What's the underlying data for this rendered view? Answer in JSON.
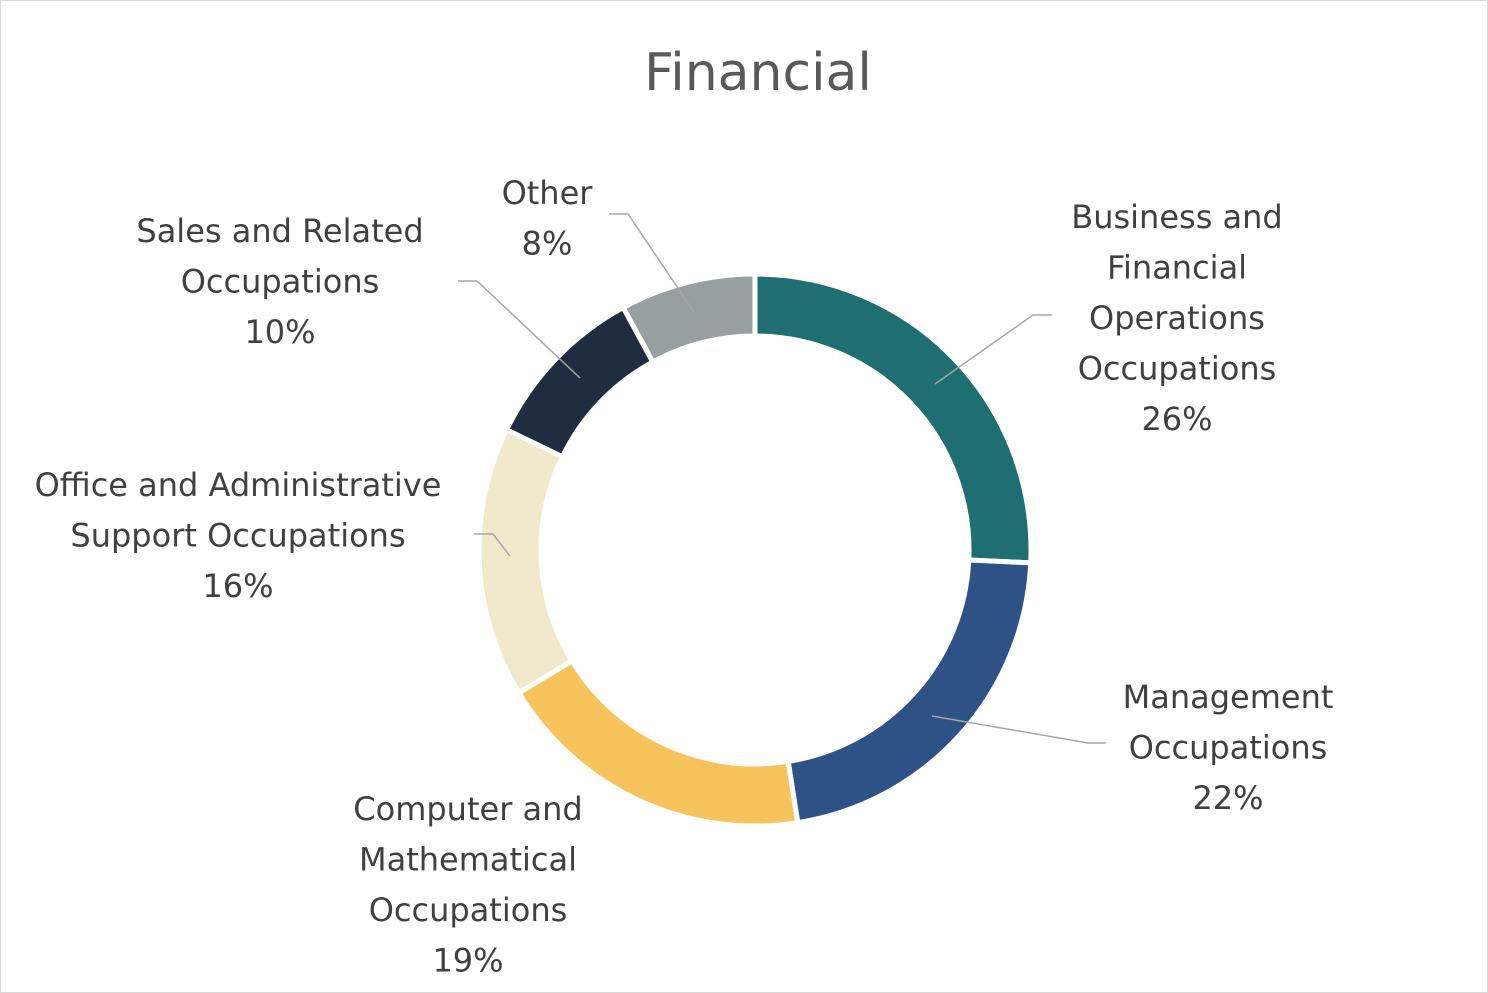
{
  "chart_data": {
    "type": "pie",
    "title": "Financial",
    "series": [
      {
        "name": "Business and Financial Operations Occupations",
        "value": 26,
        "label_lines": [
          "Business and",
          "Financial",
          "Operations",
          "Occupations",
          "26%"
        ],
        "color": "#1f6f72"
      },
      {
        "name": "Management Occupations",
        "value": 22,
        "label_lines": [
          "Management",
          "Occupations",
          "22%"
        ],
        "color": "#2e5285"
      },
      {
        "name": "Computer and Mathematical Occupations",
        "value": 19,
        "label_lines": [
          "Computer and",
          "Mathematical",
          "Occupations",
          "19%"
        ],
        "color": "#f7c35c"
      },
      {
        "name": "Office and Administrative Support Occupations",
        "value": 16,
        "label_lines": [
          "Office and Administrative",
          "Support Occupations",
          "16%"
        ],
        "color": "#f1e9cb"
      },
      {
        "name": "Sales and Related Occupations",
        "value": 10,
        "label_lines": [
          "Sales and Related",
          "Occupations",
          "10%"
        ],
        "color": "#202d40"
      },
      {
        "name": "Other",
        "value": 8,
        "label_lines": [
          "Other",
          "8%"
        ],
        "color": "#979fa1"
      }
    ]
  }
}
